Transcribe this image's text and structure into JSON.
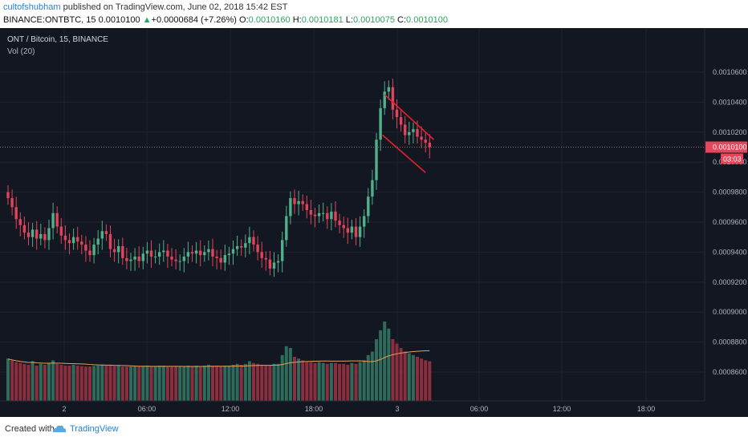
{
  "header": {
    "author": "cultofshubham",
    "published_text": " published on TradingView.com, June 02, 2018 15:42 EST",
    "symbol_interval": "BINANCE:ONTBTC, 15",
    "last": "0.0010100",
    "change_arrow": "▲",
    "change": "+0.0000684 (+7.26%)",
    "o_label": "O:",
    "o_value": "0.0010160",
    "h_label": "H:",
    "h_value": "0.0010181",
    "l_label": "L:",
    "l_value": "0.0010075",
    "c_label": "C:",
    "c_value": "0.0010100"
  },
  "legend": {
    "title": "ONT / Bitcoin, 15, BINANCE",
    "volume": "Vol (20)"
  },
  "footer": {
    "created_with": "Created with",
    "brand": "TradingView"
  },
  "colors": {
    "background": "#131722",
    "grid": "#1f2331",
    "up": "#4fb08a",
    "down": "#e0445a",
    "vol_up": "#2f6b5a",
    "vol_down": "#8b2e3e",
    "vol_ma": "#e5a05a",
    "trendline": "#e8202a",
    "price_line": "#e8455a",
    "axis_text": "#b2b5be",
    "label_bg": "#e8455a",
    "link": "#2b7fc7"
  },
  "chart_data": {
    "type": "candlestick",
    "price_axis_ticks": [
      "0.0010600",
      "0.0010400",
      "0.0010200",
      "0.0010000",
      "0.0009800",
      "0.0009600",
      "0.0009400",
      "0.0009200",
      "0.0009000",
      "0.0008800",
      "0.0008600"
    ],
    "time_axis_ticks": [
      "2",
      "06:00",
      "12:00",
      "18:00",
      "3",
      "06:00",
      "12:00",
      "18:00"
    ],
    "last_price_label": "0.0010100",
    "countdown_label": "03:03",
    "trendlines": [
      {
        "from": {
          "t": 92.0,
          "price": 0.001045
        },
        "to": {
          "t": 104.0,
          "price": 0.001015
        }
      },
      {
        "from": {
          "t": 91.5,
          "price": 0.001018
        },
        "to": {
          "t": 102.0,
          "price": 0.000993
        }
      }
    ],
    "series_note": "ONTBTC 15-minute candles with 20-period volume moving average",
    "closes": [
      0.000976,
      0.00097,
      0.000962,
      0.000958,
      0.000953,
      0.00095,
      0.000955,
      0.000949,
      0.000952,
      0.000948,
      0.000956,
      0.000966,
      0.000957,
      0.000951,
      0.000948,
      0.000946,
      0.00095,
      0.000947,
      0.000945,
      0.000941,
      0.000938,
      0.000945,
      0.000949,
      0.000954,
      0.000952,
      0.000942,
      0.00094,
      0.000944,
      0.000936,
      0.000934,
      0.000935,
      0.000937,
      0.000934,
      0.000939,
      0.000941,
      0.000937,
      0.000937,
      0.00094,
      0.000941,
      0.000937,
      0.000935,
      0.000934,
      0.000934,
      0.000937,
      0.00094,
      0.000939,
      0.000941,
      0.000938,
      0.00094,
      0.000942,
      0.000937,
      0.000936,
      0.000933,
      0.000938,
      0.000939,
      0.000942,
      0.000944,
      0.000943,
      0.000946,
      0.00095,
      0.000945,
      0.00094,
      0.000936,
      0.000935,
      0.000929,
      0.000933,
      0.000934,
      0.000948,
      0.000964,
      0.000976,
      0.000972,
      0.000974,
      0.000972,
      0.000968,
      0.000965,
      0.000964,
      0.000966,
      0.000966,
      0.000962,
      0.000967,
      0.000961,
      0.000958,
      0.000956,
      0.000953,
      0.000957,
      0.00095,
      0.000957,
      0.000964,
      0.000977,
      0.000988,
      0.001015,
      0.001036,
      0.001047,
      0.00105,
      0.001035,
      0.00103,
      0.001025,
      0.001018,
      0.00102,
      0.001022,
      0.001017,
      0.001015,
      0.001013,
      0.00101
    ],
    "volumes": [
      480,
      460,
      440,
      430,
      420,
      410,
      450,
      400,
      420,
      410,
      430,
      460,
      420,
      410,
      400,
      400,
      410,
      400,
      395,
      390,
      390,
      395,
      400,
      410,
      400,
      400,
      395,
      400,
      390,
      390,
      390,
      395,
      390,
      395,
      400,
      395,
      395,
      400,
      400,
      395,
      390,
      390,
      390,
      395,
      400,
      395,
      400,
      395,
      400,
      410,
      400,
      400,
      390,
      400,
      400,
      410,
      420,
      410,
      420,
      450,
      430,
      420,
      410,
      400,
      400,
      420,
      420,
      520,
      620,
      600,
      500,
      480,
      460,
      440,
      440,
      430,
      440,
      430,
      420,
      430,
      430,
      420,
      420,
      410,
      430,
      420,
      440,
      460,
      520,
      560,
      700,
      800,
      900,
      820,
      700,
      650,
      600,
      560,
      540,
      520,
      500,
      480,
      460,
      450
    ],
    "vol_ma_note": "moving average line drawn near ~0.00085-0.00087 zone"
  }
}
